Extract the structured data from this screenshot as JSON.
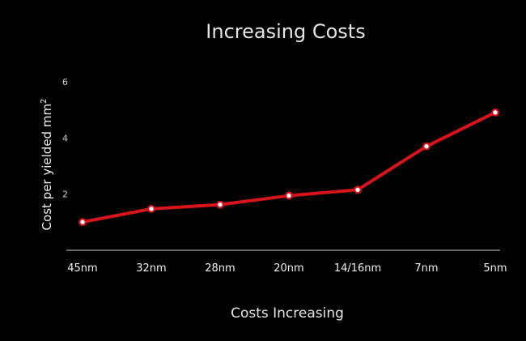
{
  "chart_data": {
    "type": "line",
    "title": "Increasing Costs",
    "xlabel": "Costs Increasing",
    "ylabel": "Cost per yielded mm",
    "ylabel_superscript": "2",
    "categories": [
      "45nm",
      "32nm",
      "28nm",
      "20nm",
      "14/16nm",
      "7nm",
      "5nm"
    ],
    "series": [
      {
        "values": [
          1.0,
          1.47,
          1.62,
          1.94,
          2.15,
          3.7,
          4.91
        ]
      }
    ],
    "yticks": [
      2,
      4,
      6
    ],
    "ylim": [
      0,
      6
    ],
    "grid": false,
    "colors": {
      "background": "#000000",
      "line": "#d8131b",
      "marker_fill": "#ffffff",
      "axis": "#cccccc",
      "text": "#e6e6e6"
    }
  }
}
